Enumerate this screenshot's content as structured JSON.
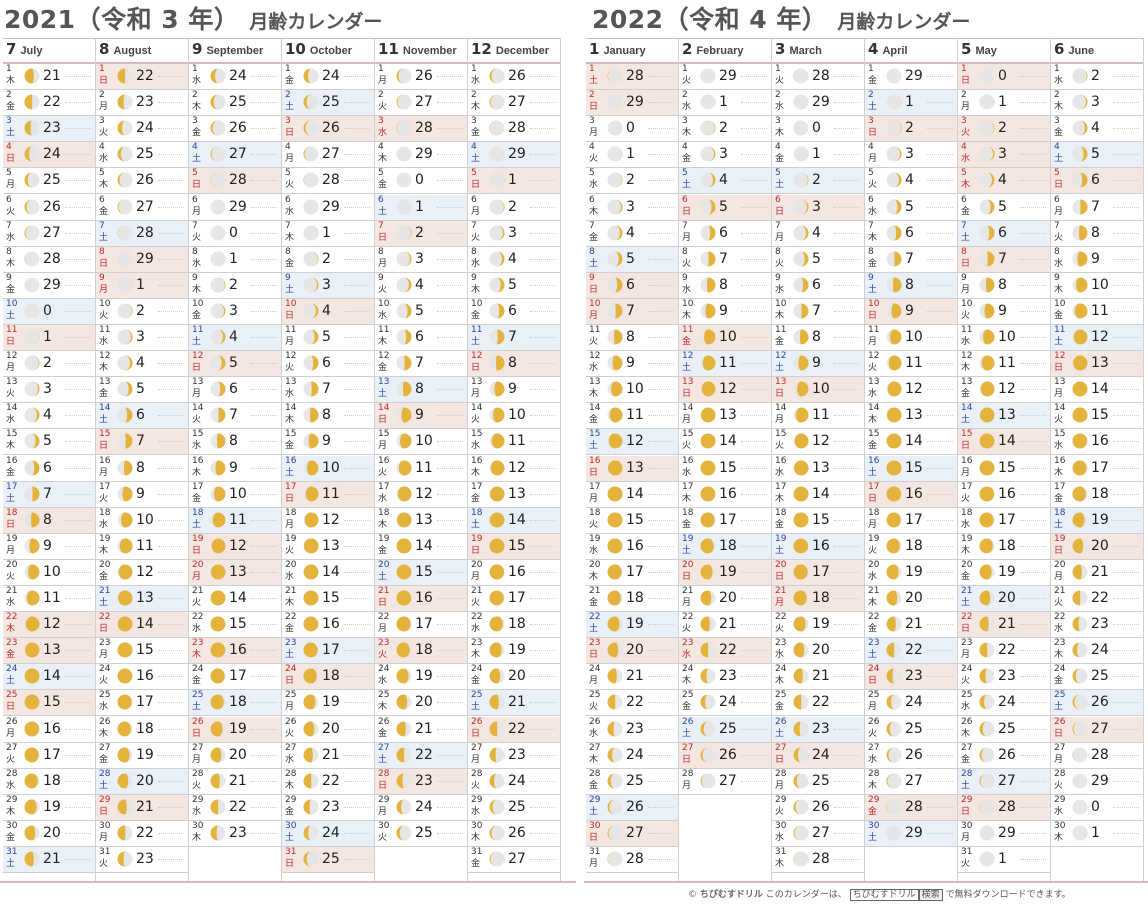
{
  "calendars": [
    {
      "title": "2021（令和 3 年）",
      "subtitle": "月齢カレンダー",
      "months": [
        {
          "num": "7",
          "eng": "July",
          "days": 31,
          "ages": [
            21,
            22,
            23,
            24,
            25,
            26,
            27,
            28,
            29,
            0,
            1,
            2,
            3,
            4,
            5,
            6,
            7,
            8,
            9,
            10,
            11,
            12,
            13,
            14,
            15,
            16,
            17,
            18,
            19,
            20,
            21
          ],
          "weekdays": [
            "木",
            "金",
            "土",
            "日",
            "月",
            "火",
            "水",
            "木",
            "金",
            "土",
            "日",
            "月",
            "火",
            "水",
            "木",
            "金",
            "土",
            "日",
            "月",
            "火",
            "水",
            "木",
            "金",
            "土",
            "日",
            "月",
            "火",
            "水",
            "木",
            "金",
            "土"
          ],
          "holidays": [
            4,
            11,
            18,
            22,
            23,
            25
          ]
        },
        {
          "num": "8",
          "eng": "August",
          "days": 31,
          "ages": [
            22,
            23,
            24,
            25,
            26,
            27,
            28,
            29,
            1,
            2,
            3,
            4,
            5,
            6,
            7,
            8,
            9,
            10,
            11,
            12,
            13,
            14,
            15,
            16,
            17,
            18,
            19,
            20,
            21,
            22,
            23
          ],
          "weekdays": [
            "日",
            "月",
            "火",
            "水",
            "木",
            "金",
            "土",
            "日",
            "月",
            "火",
            "水",
            "木",
            "金",
            "土",
            "日",
            "月",
            "火",
            "水",
            "木",
            "金",
            "土",
            "日",
            "月",
            "火",
            "水",
            "木",
            "金",
            "土",
            "日",
            "月",
            "火"
          ],
          "holidays": [
            1,
            8,
            9,
            15,
            22,
            29
          ]
        },
        {
          "num": "9",
          "eng": "September",
          "days": 30,
          "ages": [
            24,
            25,
            26,
            27,
            28,
            29,
            0,
            1,
            2,
            3,
            4,
            5,
            6,
            7,
            8,
            9,
            10,
            11,
            12,
            13,
            14,
            15,
            16,
            17,
            18,
            19,
            20,
            21,
            22,
            23
          ],
          "weekdays": [
            "水",
            "木",
            "金",
            "土",
            "日",
            "月",
            "火",
            "水",
            "木",
            "金",
            "土",
            "日",
            "月",
            "火",
            "水",
            "木",
            "金",
            "土",
            "日",
            "月",
            "火",
            "水",
            "木",
            "金",
            "土",
            "日",
            "月",
            "火",
            "水",
            "木"
          ],
          "holidays": [
            5,
            12,
            19,
            20,
            23,
            26
          ]
        },
        {
          "num": "10",
          "eng": "October",
          "days": 31,
          "ages": [
            24,
            25,
            26,
            27,
            28,
            29,
            1,
            2,
            3,
            4,
            5,
            6,
            7,
            8,
            9,
            10,
            11,
            12,
            13,
            14,
            15,
            16,
            17,
            18,
            19,
            20,
            21,
            22,
            23,
            24,
            25
          ],
          "weekdays": [
            "金",
            "土",
            "日",
            "月",
            "火",
            "水",
            "木",
            "金",
            "土",
            "日",
            "月",
            "火",
            "水",
            "木",
            "金",
            "土",
            "日",
            "月",
            "火",
            "水",
            "木",
            "金",
            "土",
            "日",
            "月",
            "火",
            "水",
            "木",
            "金",
            "土",
            "日"
          ],
          "holidays": [
            3,
            10,
            17,
            24,
            31
          ]
        },
        {
          "num": "11",
          "eng": "November",
          "days": 30,
          "ages": [
            26,
            27,
            28,
            29,
            0,
            1,
            2,
            3,
            4,
            5,
            6,
            7,
            8,
            9,
            10,
            11,
            12,
            13,
            14,
            15,
            16,
            17,
            18,
            19,
            20,
            21,
            22,
            23,
            24,
            25
          ],
          "weekdays": [
            "月",
            "火",
            "水",
            "木",
            "金",
            "土",
            "日",
            "月",
            "火",
            "水",
            "木",
            "金",
            "土",
            "日",
            "月",
            "火",
            "水",
            "木",
            "金",
            "土",
            "日",
            "月",
            "火",
            "水",
            "木",
            "金",
            "土",
            "日",
            "月",
            "火"
          ],
          "holidays": [
            3,
            7,
            14,
            21,
            23,
            28
          ]
        },
        {
          "num": "12",
          "eng": "December",
          "days": 31,
          "ages": [
            26,
            27,
            28,
            29,
            1,
            2,
            3,
            4,
            5,
            6,
            7,
            8,
            9,
            10,
            11,
            12,
            13,
            14,
            15,
            16,
            17,
            18,
            19,
            20,
            21,
            22,
            23,
            24,
            25,
            26,
            27
          ],
          "weekdays": [
            "水",
            "木",
            "金",
            "土",
            "日",
            "月",
            "火",
            "水",
            "木",
            "金",
            "土",
            "日",
            "月",
            "火",
            "水",
            "木",
            "金",
            "土",
            "日",
            "月",
            "火",
            "水",
            "木",
            "金",
            "土",
            "日",
            "月",
            "火",
            "水",
            "木",
            "金"
          ],
          "holidays": [
            5,
            12,
            19,
            26
          ]
        }
      ]
    },
    {
      "title": "2022（令和 4 年）",
      "subtitle": "月齢カレンダー",
      "months": [
        {
          "num": "1",
          "eng": "January",
          "days": 31,
          "ages": [
            28,
            29,
            0,
            1,
            2,
            3,
            4,
            5,
            6,
            7,
            8,
            9,
            10,
            11,
            12,
            13,
            14,
            15,
            16,
            17,
            18,
            19,
            20,
            21,
            22,
            23,
            24,
            25,
            26,
            27,
            28
          ],
          "weekdays": [
            "土",
            "日",
            "月",
            "火",
            "水",
            "木",
            "金",
            "土",
            "日",
            "月",
            "火",
            "水",
            "木",
            "金",
            "土",
            "日",
            "月",
            "火",
            "水",
            "木",
            "金",
            "土",
            "日",
            "月",
            "火",
            "水",
            "木",
            "金",
            "土",
            "日",
            "月"
          ],
          "holidays": [
            1,
            2,
            9,
            10,
            16,
            23,
            30
          ]
        },
        {
          "num": "2",
          "eng": "February",
          "days": 28,
          "ages": [
            29,
            1,
            2,
            3,
            4,
            5,
            6,
            7,
            8,
            9,
            10,
            11,
            12,
            13,
            14,
            15,
            16,
            17,
            18,
            19,
            20,
            21,
            22,
            23,
            24,
            25,
            26,
            27
          ],
          "weekdays": [
            "火",
            "水",
            "木",
            "金",
            "土",
            "日",
            "月",
            "火",
            "水",
            "木",
            "金",
            "土",
            "日",
            "月",
            "火",
            "水",
            "木",
            "金",
            "土",
            "日",
            "月",
            "火",
            "水",
            "木",
            "金",
            "土",
            "日",
            "月"
          ],
          "holidays": [
            6,
            11,
            13,
            20,
            23,
            27
          ]
        },
        {
          "num": "3",
          "eng": "March",
          "days": 31,
          "ages": [
            28,
            29,
            0,
            1,
            2,
            3,
            4,
            5,
            6,
            7,
            8,
            9,
            10,
            11,
            12,
            13,
            14,
            15,
            16,
            17,
            18,
            19,
            20,
            21,
            22,
            23,
            24,
            25,
            26,
            27,
            28
          ],
          "weekdays": [
            "火",
            "水",
            "木",
            "金",
            "土",
            "日",
            "月",
            "火",
            "水",
            "木",
            "金",
            "土",
            "日",
            "月",
            "火",
            "水",
            "木",
            "金",
            "土",
            "日",
            "月",
            "火",
            "水",
            "木",
            "金",
            "土",
            "日",
            "月",
            "火",
            "水",
            "木"
          ],
          "holidays": [
            6,
            13,
            20,
            21,
            27
          ]
        },
        {
          "num": "4",
          "eng": "April",
          "days": 30,
          "ages": [
            29,
            1,
            2,
            3,
            4,
            5,
            6,
            7,
            8,
            9,
            10,
            11,
            12,
            13,
            14,
            15,
            16,
            17,
            18,
            19,
            20,
            21,
            22,
            23,
            24,
            25,
            26,
            27,
            28,
            29
          ],
          "weekdays": [
            "金",
            "土",
            "日",
            "月",
            "火",
            "水",
            "木",
            "金",
            "土",
            "日",
            "月",
            "火",
            "水",
            "木",
            "金",
            "土",
            "日",
            "月",
            "火",
            "水",
            "木",
            "金",
            "土",
            "日",
            "月",
            "火",
            "水",
            "木",
            "金",
            "土"
          ],
          "holidays": [
            3,
            10,
            17,
            24,
            29
          ]
        },
        {
          "num": "5",
          "eng": "May",
          "days": 31,
          "ages": [
            0,
            1,
            2,
            3,
            4,
            5,
            6,
            7,
            8,
            9,
            10,
            11,
            12,
            13,
            14,
            15,
            16,
            17,
            18,
            19,
            20,
            21,
            22,
            23,
            24,
            25,
            26,
            27,
            28,
            29,
            1
          ],
          "weekdays": [
            "日",
            "月",
            "火",
            "水",
            "木",
            "金",
            "土",
            "日",
            "月",
            "火",
            "水",
            "木",
            "金",
            "土",
            "日",
            "月",
            "火",
            "水",
            "木",
            "金",
            "土",
            "日",
            "月",
            "火",
            "水",
            "木",
            "金",
            "土",
            "日",
            "月",
            "火"
          ],
          "holidays": [
            1,
            3,
            4,
            5,
            8,
            15,
            22,
            29
          ]
        },
        {
          "num": "6",
          "eng": "June",
          "days": 30,
          "ages": [
            2,
            3,
            4,
            5,
            6,
            7,
            8,
            9,
            10,
            11,
            12,
            13,
            14,
            15,
            16,
            17,
            18,
            19,
            20,
            21,
            22,
            23,
            24,
            25,
            26,
            27,
            28,
            29,
            0,
            1
          ],
          "weekdays": [
            "水",
            "木",
            "金",
            "土",
            "日",
            "月",
            "火",
            "水",
            "木",
            "金",
            "土",
            "日",
            "月",
            "火",
            "水",
            "木",
            "金",
            "土",
            "日",
            "月",
            "火",
            "水",
            "木",
            "金",
            "土",
            "日",
            "月",
            "火",
            "水",
            "木"
          ],
          "holidays": [
            5,
            12,
            19,
            26
          ]
        }
      ]
    }
  ],
  "footer": {
    "copyright": "©",
    "brand": "ちびむすドリル",
    "text1": "このカレンダーは、",
    "searchbox": "ちびむすドリル",
    "searchbtn": "検索",
    "text2": "で無料ダウンロードできます。"
  },
  "colors": {
    "moon": "#e3b33c",
    "moon_dark": "#e6e6e6",
    "saturday_bg": "#eaf0f7",
    "holiday_bg": "#f4e6e0"
  }
}
